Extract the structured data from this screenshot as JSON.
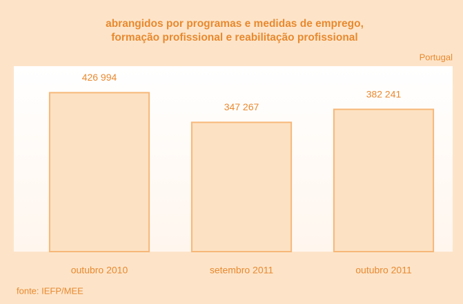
{
  "chart_data": {
    "type": "bar",
    "title": [
      "abrangidos por programas e medidas de emprego,",
      "formação profissional e reabilitação profissional"
    ],
    "subtitle": "Portugal",
    "source": "fonte: IEFP/MEE",
    "categories": [
      "outubro 2010",
      "setembro 2011",
      "outubro 2011"
    ],
    "values": [
      426994,
      347267,
      382241
    ],
    "value_labels": [
      "426 994",
      "347 267",
      "382 241"
    ],
    "color": "#fde1c3",
    "edge_color": "#f6b778",
    "ylim": [
      0,
      500000
    ]
  }
}
